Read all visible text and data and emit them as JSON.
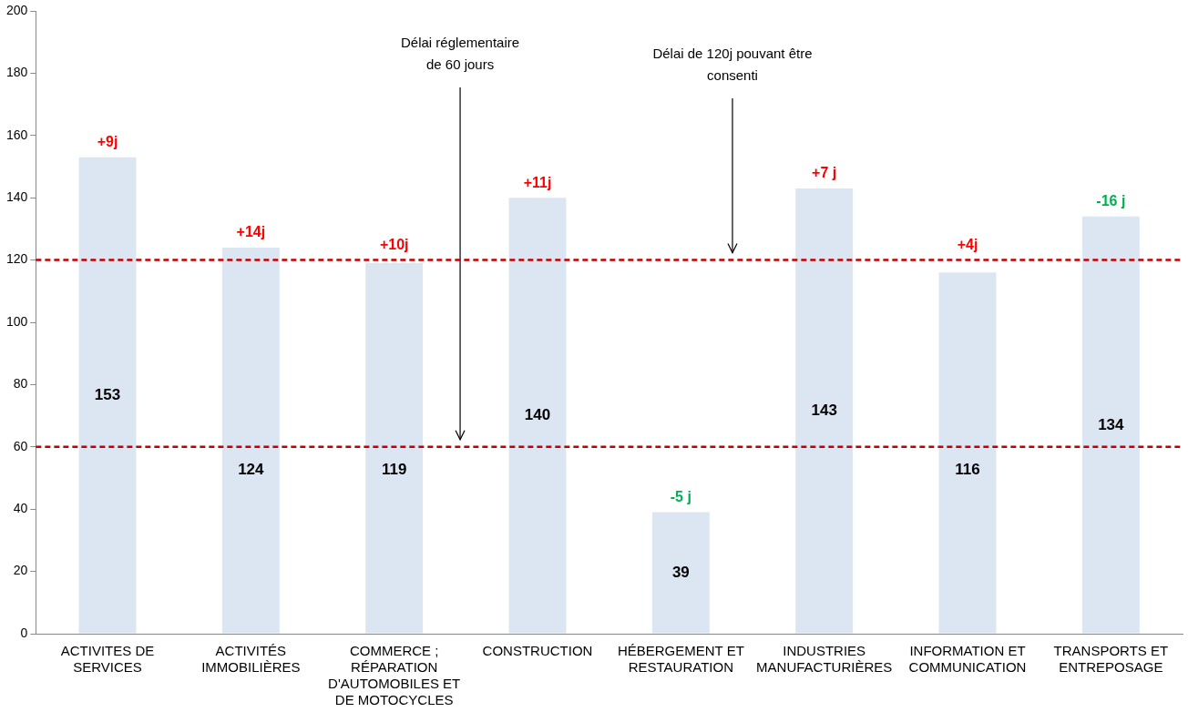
{
  "chart_data": {
    "type": "bar",
    "categories": [
      "ACTIVITES DE SERVICES",
      "ACTIVITÉS IMMOBILIÈRES",
      "COMMERCE ; RÉPARATION D'AUTOMOBILES ET DE MOTOCYCLES",
      "CONSTRUCTION",
      "HÉBERGEMENT ET RESTAURATION",
      "INDUSTRIES MANUFACTURIÈRES",
      "INFORMATION ET COMMUNICATION",
      "TRANSPORTS ET ENTREPOSAGE"
    ],
    "values": [
      153,
      124,
      119,
      140,
      39,
      143,
      116,
      134
    ],
    "color": "#dce6f2",
    "ylim": [
      0,
      200
    ],
    "yticks": [
      0,
      20,
      40,
      60,
      80,
      100,
      120,
      140,
      160,
      180,
      200
    ],
    "data_labels": true,
    "ref_lines": [
      {
        "axis": "y",
        "value": 60,
        "label": "Délai réglementaire\nde 60 jours",
        "color": "#c00000",
        "line_style": "dashed"
      },
      {
        "axis": "y",
        "value": 120,
        "label": "Délai de 120j pouvant être\nconsenti",
        "color": "#c00000",
        "line_style": "dashed"
      }
    ],
    "annotations": [
      {
        "text": "+9j",
        "x": "ACTIVITES DE SERVICES",
        "y": 153
      },
      {
        "text": "+14j",
        "x": "ACTIVITÉS IMMOBILIÈRES",
        "y": 124
      },
      {
        "text": "+10j",
        "x": "COMMERCE ; RÉPARATION D'AUTOMOBILES ET DE MOTOCYCLES",
        "y": 119
      },
      {
        "text": "+11j",
        "x": "CONSTRUCTION",
        "y": 140
      },
      {
        "text": "-5 j",
        "x": "HÉBERGEMENT ET RESTAURATION",
        "y": 39
      },
      {
        "text": "+7 j",
        "x": "INDUSTRIES MANUFACTURIÈRES",
        "y": 143
      },
      {
        "text": "+4j",
        "x": "INFORMATION ET COMMUNICATION",
        "y": 116
      },
      {
        "text": "-16 j",
        "x": "TRANSPORTS ET ENTREPOSAGE",
        "y": 134
      }
    ],
    "grid": false,
    "legend": false
  }
}
